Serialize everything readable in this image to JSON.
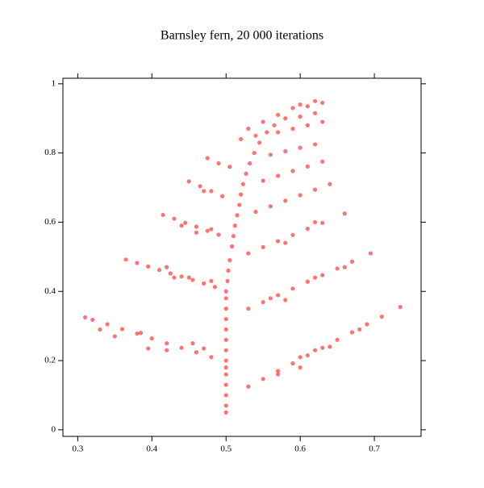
{
  "chart_data": {
    "type": "scatter",
    "title": "Barnsley fern, 20 000 iterations",
    "color": "#ff0000",
    "xlim": [
      0.28,
      0.763
    ],
    "ylim": [
      -0.019,
      1.016
    ],
    "xticks": [
      0.3,
      0.4,
      0.5,
      0.6,
      0.7
    ],
    "yticks": [
      0,
      0.2,
      0.4,
      0.6,
      0.8,
      1
    ],
    "x": [
      0.5,
      0.5,
      0.5,
      0.5,
      0.5,
      0.5,
      0.5,
      0.5,
      0.5,
      0.5,
      0.5,
      0.5,
      0.5,
      0.5,
      0.502,
      0.503,
      0.505,
      0.508,
      0.51,
      0.512,
      0.515,
      0.518,
      0.52,
      0.523,
      0.527,
      0.532,
      0.538,
      0.545,
      0.555,
      0.565,
      0.48,
      0.46,
      0.44,
      0.42,
      0.4,
      0.38,
      0.36,
      0.34,
      0.32,
      0.31,
      0.47,
      0.455,
      0.42,
      0.395,
      0.385,
      0.35,
      0.33,
      0.485,
      0.47,
      0.455,
      0.44,
      0.425,
      0.41,
      0.395,
      0.38,
      0.365,
      0.48,
      0.45,
      0.42,
      0.43,
      0.49,
      0.475,
      0.46,
      0.445,
      0.43,
      0.415,
      0.48,
      0.46,
      0.44,
      0.495,
      0.48,
      0.465,
      0.45,
      0.47,
      0.505,
      0.49,
      0.475,
      0.53,
      0.55,
      0.57,
      0.59,
      0.61,
      0.63,
      0.65,
      0.67,
      0.69,
      0.71,
      0.735,
      0.57,
      0.6,
      0.62,
      0.64,
      0.6,
      0.68,
      0.53,
      0.55,
      0.57,
      0.59,
      0.61,
      0.63,
      0.65,
      0.67,
      0.695,
      0.56,
      0.58,
      0.62,
      0.66,
      0.53,
      0.55,
      0.57,
      0.59,
      0.61,
      0.63,
      0.66,
      0.58,
      0.62,
      0.54,
      0.56,
      0.58,
      0.6,
      0.62,
      0.64,
      0.55,
      0.57,
      0.59,
      0.61,
      0.63,
      0.56,
      0.58,
      0.6,
      0.62,
      0.57,
      0.59,
      0.61,
      0.63,
      0.58,
      0.6,
      0.62,
      0.59,
      0.61,
      0.63,
      0.62,
      0.6,
      0.52,
      0.54,
      0.53,
      0.55,
      0.57
    ],
    "y": [
      0.05,
      0.07,
      0.1,
      0.13,
      0.16,
      0.18,
      0.2,
      0.23,
      0.26,
      0.29,
      0.32,
      0.35,
      0.38,
      0.4,
      0.43,
      0.46,
      0.49,
      0.53,
      0.56,
      0.59,
      0.62,
      0.65,
      0.68,
      0.71,
      0.74,
      0.77,
      0.8,
      0.83,
      0.86,
      0.88,
      0.21,
      0.224,
      0.237,
      0.25,
      0.264,
      0.278,
      0.291,
      0.305,
      0.318,
      0.325,
      0.235,
      0.25,
      0.23,
      0.235,
      0.28,
      0.27,
      0.29,
      0.413,
      0.423,
      0.433,
      0.443,
      0.452,
      0.462,
      0.472,
      0.482,
      0.492,
      0.43,
      0.44,
      0.47,
      0.44,
      0.564,
      0.575,
      0.587,
      0.598,
      0.61,
      0.621,
      0.58,
      0.57,
      0.59,
      0.675,
      0.69,
      0.704,
      0.718,
      0.69,
      0.76,
      0.77,
      0.785,
      0.125,
      0.147,
      0.17,
      0.192,
      0.215,
      0.237,
      0.26,
      0.282,
      0.305,
      0.327,
      0.355,
      0.16,
      0.18,
      0.23,
      0.24,
      0.21,
      0.29,
      0.35,
      0.369,
      0.389,
      0.408,
      0.428,
      0.447,
      0.466,
      0.486,
      0.51,
      0.38,
      0.375,
      0.44,
      0.47,
      0.51,
      0.528,
      0.545,
      0.563,
      0.581,
      0.598,
      0.625,
      0.54,
      0.6,
      0.63,
      0.646,
      0.662,
      0.678,
      0.694,
      0.71,
      0.72,
      0.734,
      0.748,
      0.761,
      0.775,
      0.795,
      0.805,
      0.815,
      0.825,
      0.86,
      0.87,
      0.88,
      0.89,
      0.9,
      0.905,
      0.915,
      0.93,
      0.935,
      0.945,
      0.95,
      0.94,
      0.84,
      0.85,
      0.87,
      0.89,
      0.91
    ]
  }
}
